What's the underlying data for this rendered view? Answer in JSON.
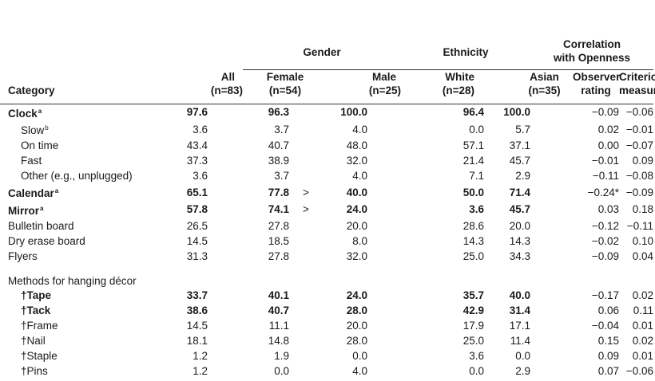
{
  "groups": {
    "gender": "Gender",
    "ethnicity": "Ethnicity",
    "correlation_line1": "Correlation",
    "correlation_line2": "with Openness"
  },
  "columns": {
    "category": "Category",
    "all": [
      "All",
      "(n=83)"
    ],
    "female": [
      "Female",
      "(n=54)"
    ],
    "male": [
      "Male",
      "(n=25)"
    ],
    "white": [
      "White",
      "(n=28)"
    ],
    "asian": [
      "Asian",
      "(n=35)"
    ],
    "observer": [
      "Observer",
      "rating"
    ],
    "criterion": [
      "Criterion",
      "measure"
    ]
  },
  "rows": [
    {
      "label": "Clock",
      "sup": "a",
      "bold": true,
      "indent": false,
      "all": "97.6",
      "female": "96.3",
      "sig": "",
      "male": "100.0",
      "white": "96.4",
      "asian": "100.0",
      "observer": "−0.09",
      "criterion": "−0.06"
    },
    {
      "label": "Slow",
      "sup": "b",
      "bold": false,
      "indent": true,
      "all": "3.6",
      "female": "3.7",
      "sig": "",
      "male": "4.0",
      "white": "0.0",
      "asian": "5.7",
      "observer": "0.02",
      "criterion": "−0.01"
    },
    {
      "label": "On time",
      "sup": "",
      "bold": false,
      "indent": true,
      "all": "43.4",
      "female": "40.7",
      "sig": "",
      "male": "48.0",
      "white": "57.1",
      "asian": "37.1",
      "observer": "0.00",
      "criterion": "−0.07"
    },
    {
      "label": "Fast",
      "sup": "",
      "bold": false,
      "indent": true,
      "all": "37.3",
      "female": "38.9",
      "sig": "",
      "male": "32.0",
      "white": "21.4",
      "asian": "45.7",
      "observer": "−0.01",
      "criterion": "0.09"
    },
    {
      "label": "Other (e.g., unplugged)",
      "sup": "",
      "bold": false,
      "indent": true,
      "all": "3.6",
      "female": "3.7",
      "sig": "",
      "male": "4.0",
      "white": "7.1",
      "asian": "2.9",
      "observer": "−0.11",
      "criterion": "−0.08"
    },
    {
      "label": "Calendar",
      "sup": "a",
      "bold": true,
      "indent": false,
      "all": "65.1",
      "female": "77.8",
      "sig": ">",
      "male": "40.0",
      "white": "50.0",
      "asian": "71.4",
      "observer": "−0.24*",
      "criterion": "−0.09"
    },
    {
      "label": "Mirror",
      "sup": "a",
      "bold": true,
      "indent": false,
      "all": "57.8",
      "female": "74.1",
      "sig": ">",
      "male": "24.0",
      "white": "3.6",
      "asian": "45.7",
      "observer": "0.03",
      "criterion": "0.18"
    },
    {
      "label": "Bulletin board",
      "sup": "",
      "bold": false,
      "indent": false,
      "all": "26.5",
      "female": "27.8",
      "sig": "",
      "male": "20.0",
      "white": "28.6",
      "asian": "20.0",
      "observer": "−0.12",
      "criterion": "−0.11"
    },
    {
      "label": "Dry erase board",
      "sup": "",
      "bold": false,
      "indent": false,
      "all": "14.5",
      "female": "18.5",
      "sig": "",
      "male": "8.0",
      "white": "14.3",
      "asian": "14.3",
      "observer": "−0.02",
      "criterion": "0.10"
    },
    {
      "label": "Flyers",
      "sup": "",
      "bold": false,
      "indent": false,
      "all": "31.3",
      "female": "27.8",
      "sig": "",
      "male": "32.0",
      "white": "25.0",
      "asian": "34.3",
      "observer": "−0.09",
      "criterion": "0.04"
    },
    {
      "label": "",
      "spacer": true
    },
    {
      "label": "Methods for hanging décor",
      "section": true
    },
    {
      "label": "†Tape",
      "sup": "",
      "bold": true,
      "indent": true,
      "all": "33.7",
      "female": "40.1",
      "sig": "",
      "male": "24.0",
      "white": "35.7",
      "asian": "40.0",
      "observer": "−0.17",
      "criterion": "0.02"
    },
    {
      "label": "†Tack",
      "sup": "",
      "bold": true,
      "indent": true,
      "all": "38.6",
      "female": "40.7",
      "sig": "",
      "male": "28.0",
      "white": "42.9",
      "asian": "31.4",
      "observer": "0.06",
      "criterion": "0.11"
    },
    {
      "label": "†Frame",
      "sup": "",
      "bold": false,
      "indent": true,
      "all": "14.5",
      "female": "11.1",
      "sig": "",
      "male": "20.0",
      "white": "17.9",
      "asian": "17.1",
      "observer": "−0.04",
      "criterion": "0.01"
    },
    {
      "label": "†Nail",
      "sup": "",
      "bold": false,
      "indent": true,
      "all": "18.1",
      "female": "14.8",
      "sig": "",
      "male": "28.0",
      "white": "25.0",
      "asian": "11.4",
      "observer": "0.15",
      "criterion": "0.02"
    },
    {
      "label": "†Staple",
      "sup": "",
      "bold": false,
      "indent": true,
      "all": "1.2",
      "female": "1.9",
      "sig": "",
      "male": "0.0",
      "white": "3.6",
      "asian": "0.0",
      "observer": "0.09",
      "criterion": "0.01"
    },
    {
      "label": "†Pins",
      "sup": "",
      "bold": false,
      "indent": true,
      "all": "1.2",
      "female": "0.0",
      "sig": "",
      "male": "4.0",
      "white": "0.0",
      "asian": "2.9",
      "observer": "0.07",
      "criterion": "−0.06"
    }
  ]
}
